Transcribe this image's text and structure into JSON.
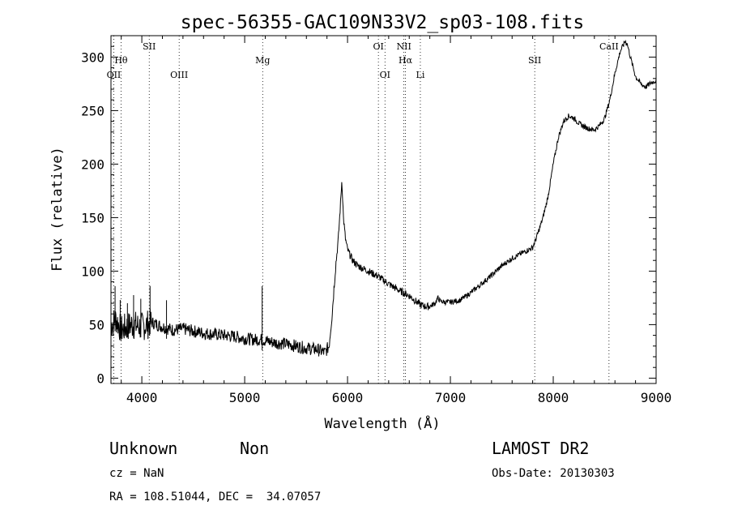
{
  "chart_data": {
    "type": "line",
    "title": "spec-56355-GAC109N33V2_sp03-108.fits",
    "xlabel": "Wavelength (Å)",
    "ylabel": "Flux (relative)",
    "xlim": [
      3700,
      9000
    ],
    "ylim": [
      -5,
      320
    ],
    "xticks": [
      4000,
      5000,
      6000,
      7000,
      8000,
      9000
    ],
    "yticks": [
      0,
      50,
      100,
      150,
      200,
      250,
      300
    ],
    "x_minor_step": 200,
    "y_minor_step": 10,
    "series": [
      {
        "name": "spectrum",
        "points": [
          [
            3700,
            50
          ],
          [
            3750,
            55
          ],
          [
            3800,
            45
          ],
          [
            3900,
            50
          ],
          [
            4000,
            48
          ],
          [
            4100,
            52
          ],
          [
            4200,
            48
          ],
          [
            4300,
            45
          ],
          [
            4400,
            46
          ],
          [
            4500,
            44
          ],
          [
            4600,
            42
          ],
          [
            4700,
            41
          ],
          [
            4800,
            40
          ],
          [
            4900,
            39
          ],
          [
            5000,
            37
          ],
          [
            5100,
            36
          ],
          [
            5170,
            36
          ],
          [
            5200,
            35
          ],
          [
            5300,
            33
          ],
          [
            5400,
            32
          ],
          [
            5500,
            30
          ],
          [
            5600,
            28
          ],
          [
            5700,
            27
          ],
          [
            5780,
            24
          ],
          [
            5820,
            30
          ],
          [
            5850,
            60
          ],
          [
            5880,
            100
          ],
          [
            5910,
            130
          ],
          [
            5930,
            160
          ],
          [
            5945,
            185
          ],
          [
            5960,
            150
          ],
          [
            5980,
            130
          ],
          [
            6000,
            120
          ],
          [
            6050,
            110
          ],
          [
            6100,
            105
          ],
          [
            6200,
            100
          ],
          [
            6300,
            95
          ],
          [
            6400,
            88
          ],
          [
            6500,
            82
          ],
          [
            6600,
            77
          ],
          [
            6650,
            73
          ],
          [
            6700,
            69
          ],
          [
            6750,
            67
          ],
          [
            6800,
            67
          ],
          [
            6850,
            70
          ],
          [
            6880,
            75
          ],
          [
            6900,
            72
          ],
          [
            6950,
            71
          ],
          [
            7000,
            71
          ],
          [
            7100,
            73
          ],
          [
            7200,
            80
          ],
          [
            7300,
            88
          ],
          [
            7400,
            96
          ],
          [
            7500,
            105
          ],
          [
            7600,
            112
          ],
          [
            7700,
            117
          ],
          [
            7800,
            122
          ],
          [
            7850,
            135
          ],
          [
            7900,
            150
          ],
          [
            7950,
            170
          ],
          [
            8000,
            200
          ],
          [
            8050,
            225
          ],
          [
            8100,
            240
          ],
          [
            8150,
            245
          ],
          [
            8200,
            243
          ],
          [
            8250,
            238
          ],
          [
            8300,
            235
          ],
          [
            8350,
            233
          ],
          [
            8400,
            232
          ],
          [
            8450,
            236
          ],
          [
            8500,
            243
          ],
          [
            8550,
            260
          ],
          [
            8600,
            285
          ],
          [
            8650,
            305
          ],
          [
            8700,
            315
          ],
          [
            8720,
            312
          ],
          [
            8750,
            300
          ],
          [
            8800,
            282
          ],
          [
            8850,
            275
          ],
          [
            8900,
            272
          ],
          [
            8950,
            276
          ],
          [
            9000,
            278
          ]
        ]
      }
    ],
    "spikes": [
      {
        "x": 3740,
        "height": 32
      },
      {
        "x": 3790,
        "height": 26
      },
      {
        "x": 3860,
        "height": 22
      },
      {
        "x": 3920,
        "height": 28
      },
      {
        "x": 3990,
        "height": 26
      },
      {
        "x": 4080,
        "height": 35
      },
      {
        "x": 4240,
        "height": 26
      },
      {
        "x": 5170,
        "height": 50
      }
    ],
    "lines": [
      {
        "label": "OII",
        "x": 3727,
        "row": 3
      },
      {
        "label": "Hθ",
        "x": 3798,
        "row": 2
      },
      {
        "label": "SII",
        "x": 4072,
        "row": 1
      },
      {
        "label": "OIII",
        "x": 4363,
        "row": 3
      },
      {
        "label": "Mg",
        "x": 5175,
        "row": 2
      },
      {
        "label": "OI",
        "x": 6300,
        "row": 1
      },
      {
        "label": "OI",
        "x": 6364,
        "row": 3
      },
      {
        "label": "NII",
        "x": 6548,
        "row": 1
      },
      {
        "label": "Hα",
        "x": 6563,
        "row": 2
      },
      {
        "label": "Li",
        "x": 6708,
        "row": 3
      },
      {
        "label": "SII",
        "x": 7820,
        "row": 2
      },
      {
        "label": "CaII",
        "x": 8542,
        "row": 1
      }
    ]
  },
  "footer": {
    "class_label": "Unknown",
    "subclass_label": "Non",
    "survey": "LAMOST DR2",
    "cz": "cz = NaN",
    "obs_date": "Obs-Date: 20130303",
    "coords": "RA = 108.51044, DEC =  34.07057"
  }
}
